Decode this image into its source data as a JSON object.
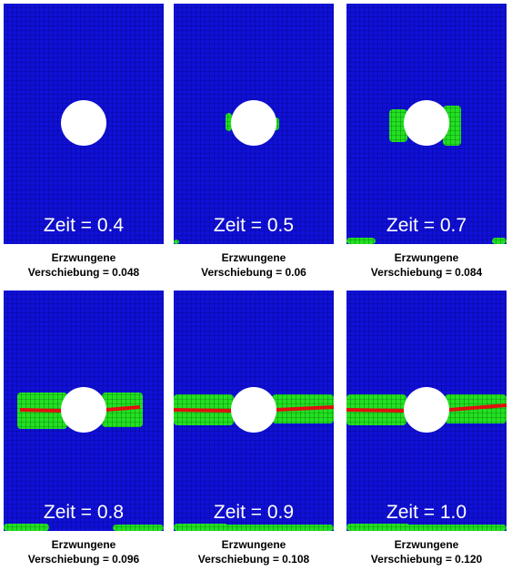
{
  "panels": [
    {
      "label": "Zeit = 0.4",
      "caption": [
        "Erzwungene",
        "Verschiebung = 0.048"
      ]
    },
    {
      "label": "Zeit = 0.5",
      "caption": [
        "Erzwungene",
        "Verschiebung = 0.06"
      ]
    },
    {
      "label": "Zeit = 0.7",
      "caption": [
        "Erzwungene",
        "Verschiebung = 0.084"
      ]
    },
    {
      "label": "Zeit = 0.8",
      "caption": [
        "Erzwungene",
        "Verschiebung = 0.096"
      ]
    },
    {
      "label": "Zeit = 0.9",
      "caption": [
        "Erzwungene",
        "Verschiebung = 0.108"
      ]
    },
    {
      "label": "Zeit = 1.0",
      "caption": [
        "Erzwungene",
        "Verschiebung = 0.120"
      ]
    }
  ]
}
